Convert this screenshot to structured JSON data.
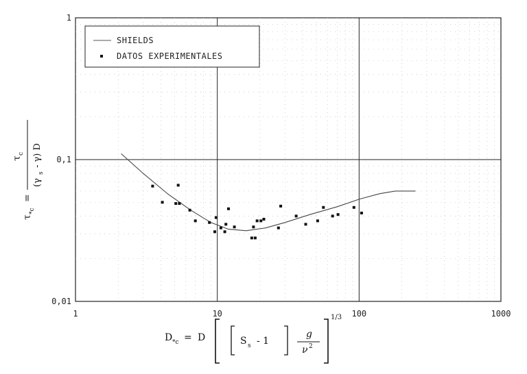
{
  "chart_data": {
    "type": "scatter",
    "xscale": "log",
    "yscale": "log",
    "xlim": [
      1,
      1000
    ],
    "ylim": [
      0.01,
      1
    ],
    "x_ticks": [
      "1",
      "10",
      "100",
      "1000"
    ],
    "y_ticks": [
      "0,01",
      "0,1",
      "1"
    ],
    "grid": true,
    "legend_position": "top-left",
    "xlabel": {
      "lhs": "D",
      "lhs_sub": "*c",
      "eq": "=",
      "d": "D",
      "s": "S",
      "s_sub": "s",
      "minus_one": "- 1",
      "g": "g",
      "nu": "ν",
      "nu_exp": "2",
      "exp": "1/3"
    },
    "ylabel": {
      "lhs": "τ",
      "lhs_sub": "*c",
      "eq": "=",
      "num": "τ",
      "num_sub": "c",
      "den_open": "(γ",
      "den_sub": "s",
      "den_rest": "- γ) D"
    },
    "series": [
      {
        "name": "SHIELDS",
        "kind": "line",
        "x": [
          2.1,
          3.0,
          4.5,
          6.5,
          9.0,
          12.0,
          16.0,
          22.0,
          30.0,
          45.0,
          70.0,
          100.0,
          140.0,
          180.0,
          250.0
        ],
        "y": [
          0.11,
          0.08,
          0.057,
          0.044,
          0.036,
          0.0323,
          0.0315,
          0.033,
          0.036,
          0.041,
          0.0465,
          0.0525,
          0.0575,
          0.06,
          0.06
        ]
      },
      {
        "name": "DATOS EXPERIMENTALES",
        "kind": "scatter",
        "x": [
          3.5,
          4.1,
          5.1,
          5.3,
          5.4,
          6.4,
          7.0,
          8.8,
          9.6,
          9.8,
          10.6,
          11.3,
          11.5,
          12.0,
          13.2,
          17.5,
          18.0,
          18.5,
          19.1,
          20.3,
          21.3,
          27.0,
          28.0,
          36.0,
          42.0,
          51.0,
          56.0,
          65.0,
          71.0,
          92.0,
          104.0
        ],
        "y": [
          0.065,
          0.05,
          0.049,
          0.066,
          0.049,
          0.044,
          0.037,
          0.036,
          0.031,
          0.039,
          0.033,
          0.031,
          0.035,
          0.045,
          0.0335,
          0.028,
          0.0335,
          0.028,
          0.037,
          0.037,
          0.038,
          0.033,
          0.047,
          0.04,
          0.035,
          0.037,
          0.046,
          0.04,
          0.041,
          0.046,
          0.042
        ]
      }
    ]
  }
}
